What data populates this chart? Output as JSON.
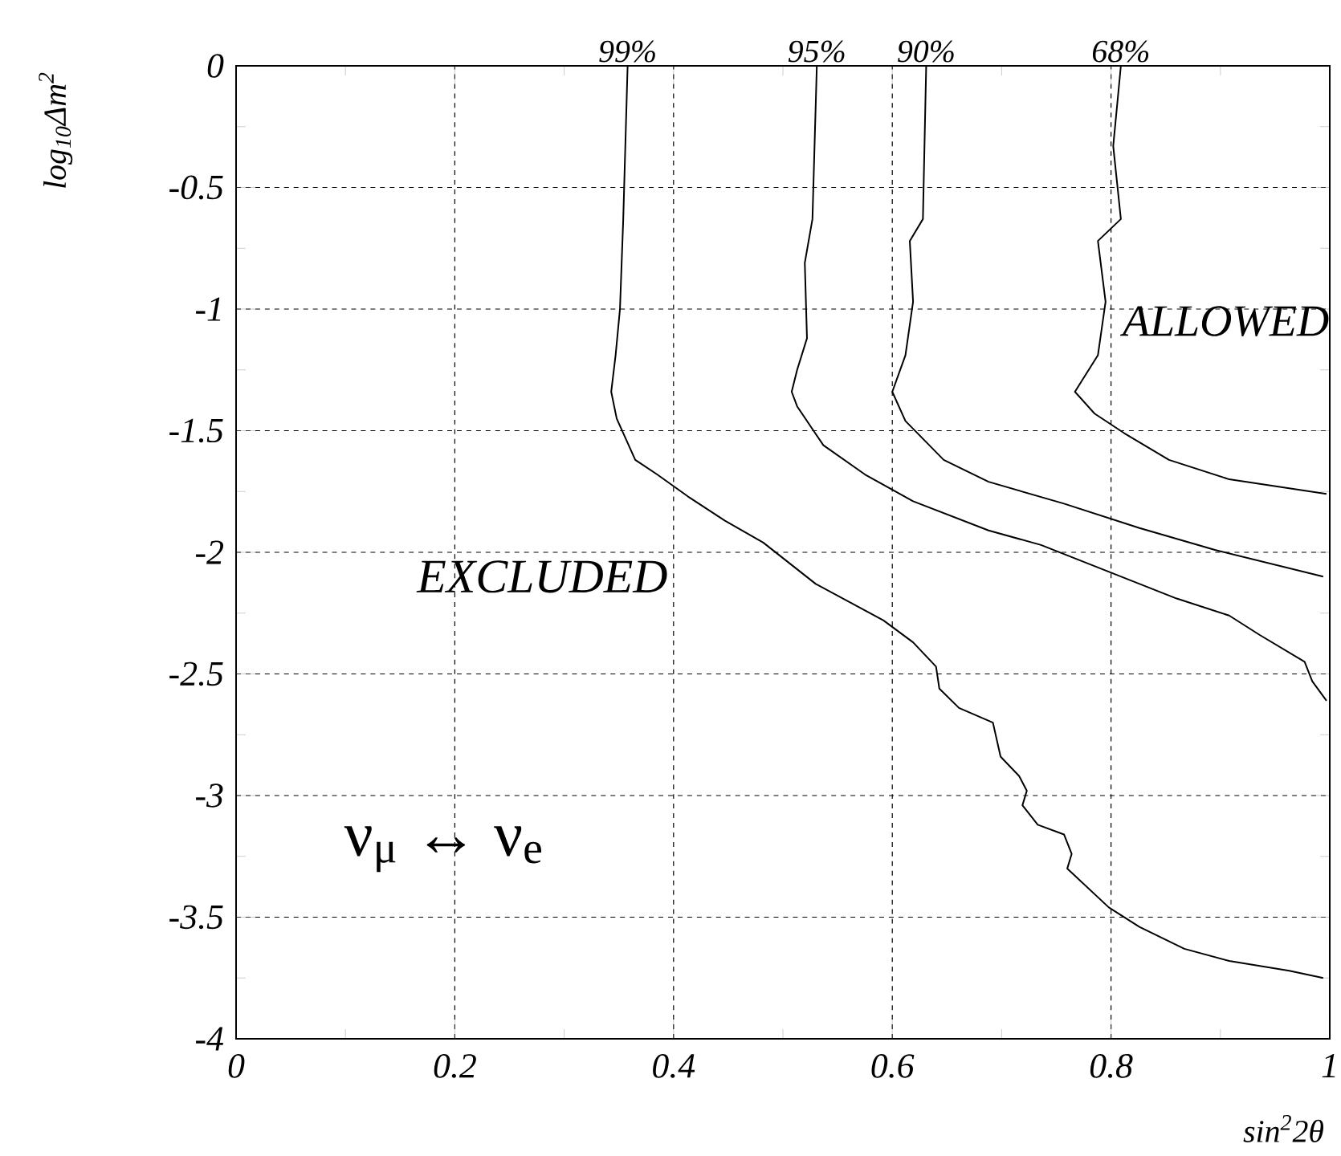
{
  "chart_data": {
    "type": "line",
    "xlabel": "sin$^{2}$2θ",
    "ylabel": "log$_{10}$Δm$^{2}$",
    "xlim": [
      0,
      1
    ],
    "ylim": [
      -4,
      0
    ],
    "xticks": [
      0,
      0.2,
      0.4,
      0.6,
      0.8,
      1
    ],
    "yticks": [
      0,
      -0.5,
      -1,
      -1.5,
      -2,
      -2.5,
      -3,
      -3.5,
      -4
    ],
    "grid": true,
    "marker": "none",
    "line_style": "solid",
    "annotations": [
      "EXCLUDED",
      "ALLOWED",
      "ν$_{μ}$ ↔ ν$_{e}$"
    ],
    "series": [
      {
        "name": "99%",
        "color": "#000000",
        "x": [
          0.358,
          0.354,
          0.351,
          0.347,
          0.343,
          0.348,
          0.365,
          0.385,
          0.413,
          0.447,
          0.482,
          0.53,
          0.592,
          0.619,
          0.64,
          0.643,
          0.661,
          0.692,
          0.699,
          0.716,
          0.723,
          0.719,
          0.733,
          0.757,
          0.764,
          0.76,
          0.798,
          0.826,
          0.867,
          0.908,
          0.963,
          0.994
        ],
        "values": [
          0,
          -0.63,
          -1.0,
          -1.19,
          -1.34,
          -1.45,
          -1.62,
          -1.68,
          -1.77,
          -1.87,
          -1.96,
          -2.13,
          -2.28,
          -2.37,
          -2.47,
          -2.56,
          -2.64,
          -2.7,
          -2.84,
          -2.92,
          -2.98,
          -3.04,
          -3.12,
          -3.16,
          -3.24,
          -3.3,
          -3.46,
          -3.54,
          -3.63,
          -3.68,
          -3.72,
          -3.75
        ]
      },
      {
        "name": "95%",
        "color": "#000000",
        "x": [
          0.531,
          0.527,
          0.52,
          0.522,
          0.513,
          0.508,
          0.513,
          0.537,
          0.575,
          0.619,
          0.688,
          0.736,
          0.798,
          0.86,
          0.908,
          0.936,
          0.977,
          0.984,
          0.997
        ],
        "values": [
          0,
          -0.63,
          -0.81,
          -1.12,
          -1.25,
          -1.34,
          -1.4,
          -1.56,
          -1.68,
          -1.79,
          -1.91,
          -1.97,
          -2.08,
          -2.19,
          -2.26,
          -2.34,
          -2.45,
          -2.53,
          -2.61
        ]
      },
      {
        "name": "90%",
        "color": "#000000",
        "x": [
          0.631,
          0.628,
          0.616,
          0.619,
          0.612,
          0.6,
          0.612,
          0.647,
          0.688,
          0.757,
          0.826,
          0.895,
          0.994
        ],
        "values": [
          0,
          -0.63,
          -0.72,
          -0.97,
          -1.19,
          -1.34,
          -1.46,
          -1.62,
          -1.71,
          -1.8,
          -1.9,
          -1.99,
          -2.1
        ]
      },
      {
        "name": "68%",
        "color": "#000000",
        "x": [
          0.809,
          0.802,
          0.809,
          0.788,
          0.795,
          0.788,
          0.767,
          0.785,
          0.812,
          0.853,
          0.908,
          0.997
        ],
        "values": [
          0,
          -0.33,
          -0.63,
          -0.72,
          -0.97,
          -1.19,
          -1.34,
          -1.43,
          -1.51,
          -1.62,
          -1.7,
          -1.76
        ]
      }
    ]
  }
}
